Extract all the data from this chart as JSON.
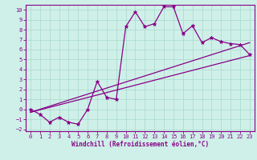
{
  "xlabel": "Windchill (Refroidissement éolien,°C)",
  "bg_color": "#cff0e8",
  "line_color": "#880088",
  "xlim": [
    -0.5,
    23.5
  ],
  "ylim": [
    -2.2,
    10.5
  ],
  "xticks": [
    0,
    1,
    2,
    3,
    4,
    5,
    6,
    7,
    8,
    9,
    10,
    11,
    12,
    13,
    14,
    15,
    16,
    17,
    18,
    19,
    20,
    21,
    22,
    23
  ],
  "yticks": [
    -2,
    -1,
    0,
    1,
    2,
    3,
    4,
    5,
    6,
    7,
    8,
    9,
    10
  ],
  "main_x": [
    0,
    1,
    2,
    3,
    4,
    5,
    6,
    7,
    8,
    9,
    10,
    11,
    12,
    13,
    14,
    15,
    16,
    17,
    18,
    19,
    20,
    21,
    22,
    23
  ],
  "main_y": [
    0,
    -0.5,
    -1.3,
    -0.8,
    -1.3,
    -1.5,
    0.0,
    2.8,
    1.2,
    1.0,
    8.3,
    9.8,
    8.3,
    8.6,
    10.3,
    10.3,
    7.6,
    8.4,
    6.7,
    7.2,
    6.8,
    6.6,
    6.5,
    5.5
  ],
  "line1_x": [
    0,
    23
  ],
  "line1_y": [
    -0.3,
    5.4
  ],
  "line2_x": [
    0,
    23
  ],
  "line2_y": [
    -0.3,
    6.7
  ],
  "grid_color": "#a8d8cc",
  "marker": "*",
  "markersize": 3.5,
  "linewidth": 0.9,
  "xlabel_fontsize": 5.5,
  "tick_fontsize": 5.0
}
